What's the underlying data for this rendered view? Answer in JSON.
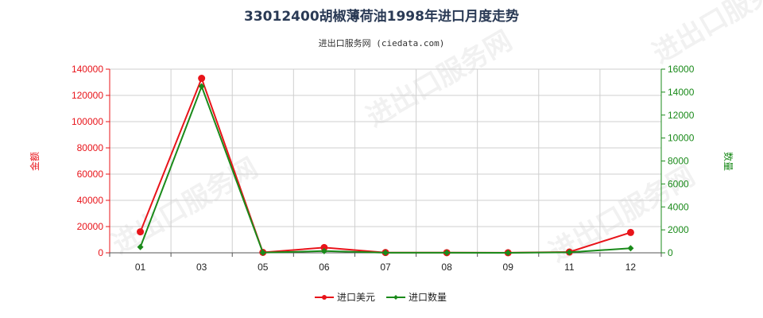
{
  "chart_data": {
    "type": "line",
    "title": "33012400胡椒薄荷油1998年进口月度走势",
    "subtitle": "进出口服务网 (ciedata.com)",
    "categories": [
      "01",
      "03",
      "05",
      "06",
      "07",
      "08",
      "09",
      "11",
      "12"
    ],
    "y_left": {
      "label": "金额",
      "ylim": [
        0,
        140000
      ],
      "ticks": [
        "0",
        "20000",
        "40000",
        "60000",
        "80000",
        "100000",
        "120000",
        "140000"
      ],
      "color": "#e8141a"
    },
    "y_right": {
      "label": "数量",
      "ylim": [
        0,
        16000
      ],
      "ticks": [
        "0",
        "2000",
        "4000",
        "6000",
        "8000",
        "10000",
        "12000",
        "14000",
        "16000"
      ],
      "color": "#1a8a1a"
    },
    "series": [
      {
        "name": "进口美元",
        "axis": "left",
        "color": "#e8141a",
        "values": [
          16000,
          133000,
          300,
          4000,
          200,
          100,
          50,
          600,
          15500
        ]
      },
      {
        "name": "进口数量",
        "axis": "right",
        "color": "#1a8a1a",
        "values": [
          500,
          14500,
          20,
          150,
          10,
          5,
          3,
          40,
          400
        ]
      }
    ],
    "grid": true,
    "legend": "bottom-center",
    "watermark": "进出口服务网"
  }
}
